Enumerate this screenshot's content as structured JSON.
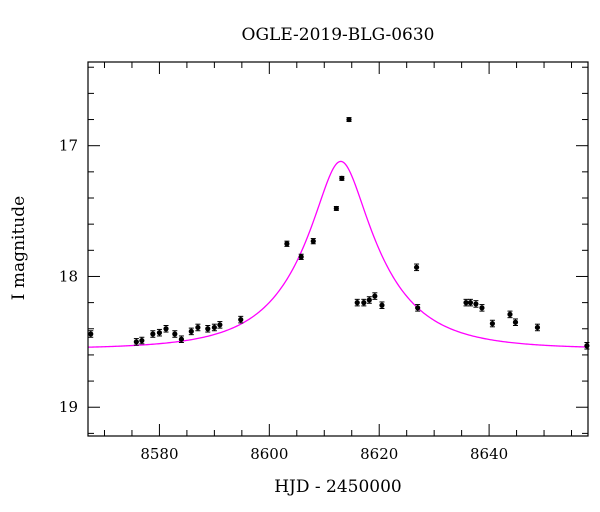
{
  "chart_data": {
    "type": "scatter",
    "title": "OGLE-2019-BLG-0630",
    "xlabel": "HJD - 2450000",
    "ylabel": "I magnitude",
    "xlim": [
      8567,
      8658
    ],
    "ylim": [
      19.22,
      16.36
    ],
    "y_inverted": true,
    "x_major_ticks": [
      8580,
      8600,
      8620,
      8640
    ],
    "x_minor_step": 5,
    "y_major_ticks": [
      17,
      18,
      19
    ],
    "y_minor_step": 0.2,
    "grid": false,
    "colors": {
      "points": "#000000",
      "model": "#ff00ff",
      "frame": "#000000"
    },
    "series": [
      {
        "kind": "points",
        "x": [
          8567.5,
          8575.8,
          8576.8,
          8578.8,
          8580.0,
          8581.2,
          8582.8,
          8584.0,
          8585.8,
          8587.0,
          8588.8,
          8590.0,
          8591.0,
          8594.8,
          8603.2,
          8605.8,
          8608.0,
          8612.2,
          8613.2,
          8614.5,
          8616.0,
          8617.2,
          8618.2,
          8619.2,
          8620.5,
          8626.8,
          8627.0,
          8635.8,
          8636.6,
          8637.6,
          8638.7,
          8640.6,
          8643.8,
          8644.8,
          8648.8,
          8657.8
        ],
        "y": [
          18.44,
          18.5,
          18.49,
          18.44,
          18.43,
          18.4,
          18.44,
          18.48,
          18.42,
          18.39,
          18.4,
          18.39,
          18.37,
          18.33,
          17.75,
          17.85,
          17.73,
          17.48,
          17.25,
          16.8,
          18.2,
          18.2,
          18.18,
          18.15,
          18.22,
          17.93,
          18.24,
          18.2,
          18.2,
          18.21,
          18.24,
          18.36,
          18.29,
          18.35,
          18.39,
          18.53
        ],
        "err": [
          0.025,
          0.025,
          0.025,
          0.025,
          0.025,
          0.025,
          0.025,
          0.025,
          0.025,
          0.025,
          0.025,
          0.025,
          0.025,
          0.025,
          0.02,
          0.02,
          0.02,
          0.015,
          0.015,
          0.015,
          0.025,
          0.025,
          0.025,
          0.025,
          0.025,
          0.025,
          0.025,
          0.025,
          0.025,
          0.025,
          0.025,
          0.025,
          0.025,
          0.025,
          0.025,
          0.025
        ]
      },
      {
        "kind": "model",
        "baseline": 18.555,
        "peak_x": 8613.0,
        "peak_y": 17.12,
        "u0": 0.3,
        "tE": 14.0
      }
    ]
  }
}
